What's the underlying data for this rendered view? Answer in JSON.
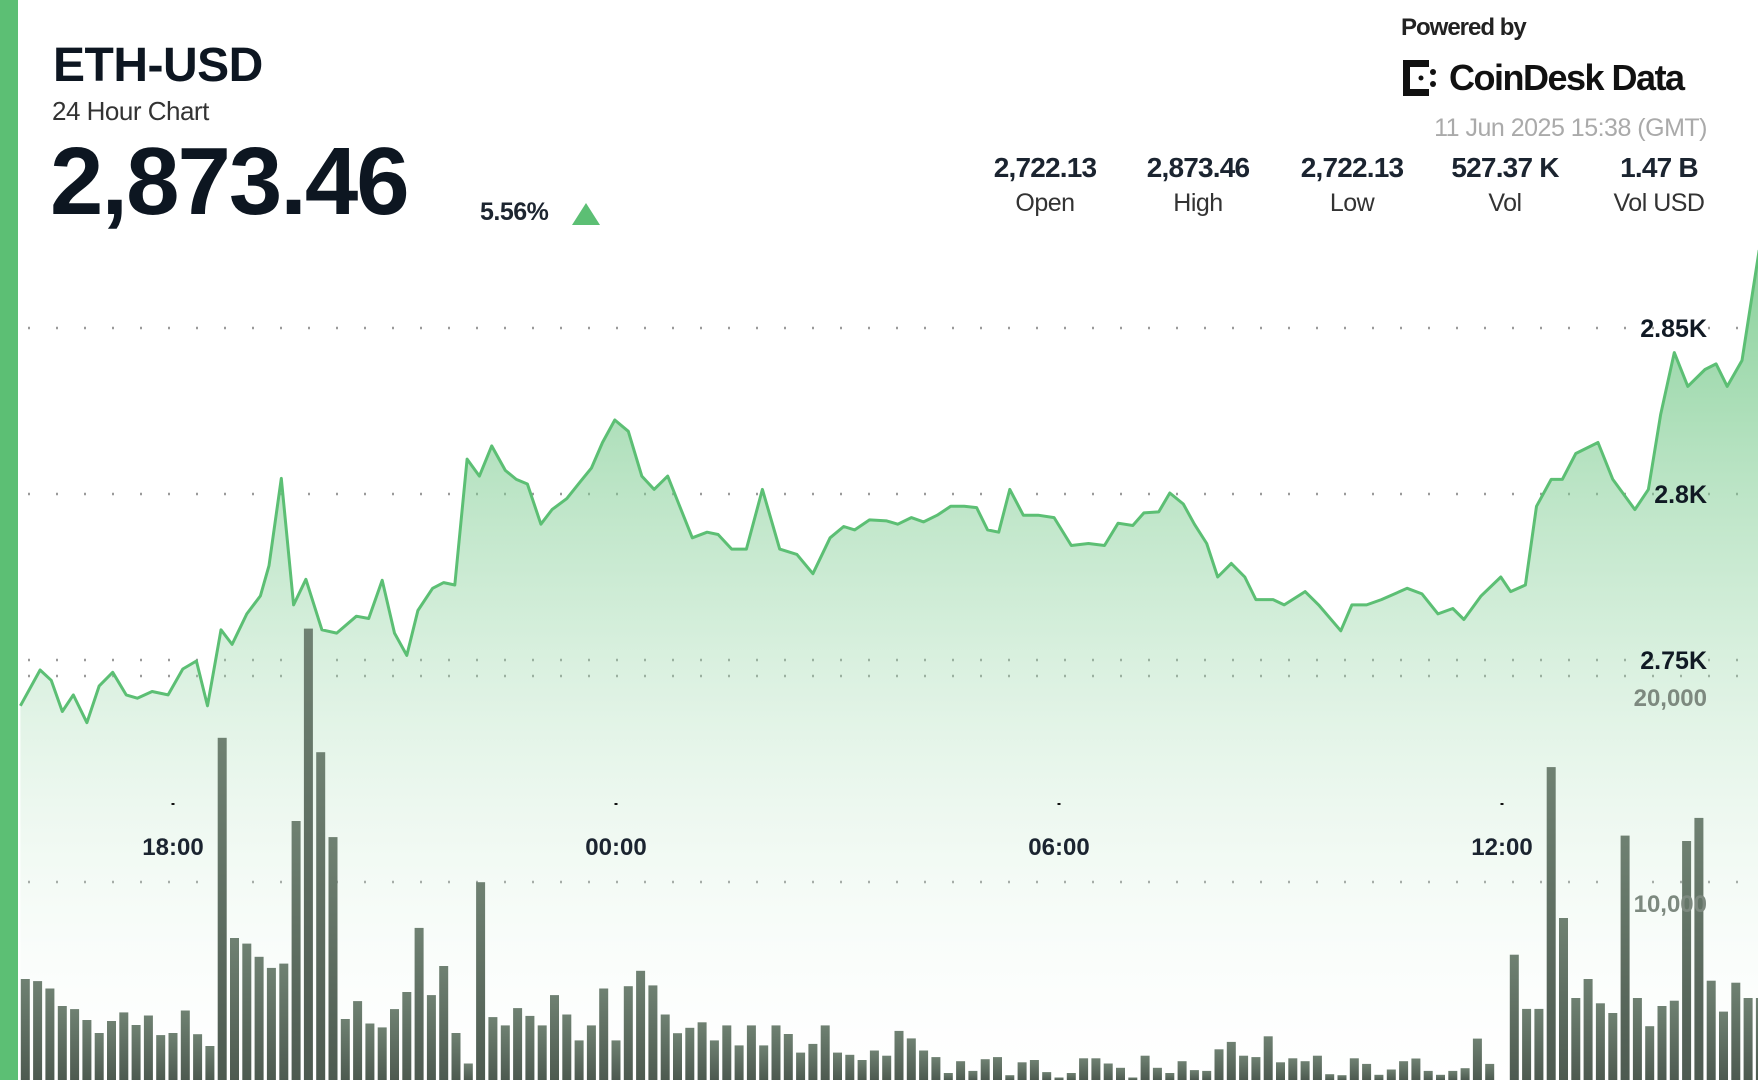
{
  "header": {
    "pair": "ETH-USD",
    "subtitle": "24 Hour Chart",
    "price": "2,873.46",
    "change_pct": "5.56%",
    "change_direction": "up",
    "powered_by": "Powered by",
    "brand": "CoinDesk Data",
    "timestamp": "11 Jun 2025 15:38 (GMT)"
  },
  "stats": [
    {
      "value": "2,722.13",
      "label": "Open"
    },
    {
      "value": "2,873.46",
      "label": "High"
    },
    {
      "value": "2,722.13",
      "label": "Low"
    },
    {
      "value": "527.37 K",
      "label": "Vol"
    },
    {
      "value": "1.47 B",
      "label": "Vol USD"
    }
  ],
  "colors": {
    "accent": "#5cbf74",
    "line": "#5cbf74",
    "volume_bar": "#5b6a5e",
    "up": "#5cbf74"
  },
  "chart_data": {
    "type": "area",
    "grid": "dotted horizontal",
    "price_axis": {
      "ticks": [
        2750,
        2800,
        2850
      ],
      "tick_labels": [
        "2.75K",
        "2.8K",
        "2.85K"
      ],
      "position": "right"
    },
    "volume_axis": {
      "ticks": [
        10000,
        20000
      ],
      "tick_labels": [
        "10,000",
        "20,000"
      ],
      "position": "right"
    },
    "x_ticks": [
      "18:00",
      "00:00",
      "06:00",
      "12:00"
    ],
    "price_series": [
      [
        "15:56",
        2736.2
      ],
      [
        "16:12",
        2747.0
      ],
      [
        "16:21",
        2743.9
      ],
      [
        "16:30",
        2734.5
      ],
      [
        "16:39",
        2739.5
      ],
      [
        "16:50",
        2731.1
      ],
      [
        "17:00",
        2742.2
      ],
      [
        "17:11",
        2746.3
      ],
      [
        "17:22",
        2739.5
      ],
      [
        "17:31",
        2738.5
      ],
      [
        "17:43",
        2740.5
      ],
      [
        "17:56",
        2739.5
      ],
      [
        "18:08",
        2747.3
      ],
      [
        "18:19",
        2749.7
      ],
      [
        "18:28",
        2736.2
      ],
      [
        "18:39",
        2759.1
      ],
      [
        "18:48",
        2754.7
      ],
      [
        "19:00",
        2763.9
      ],
      [
        "19:11",
        2769.3
      ],
      [
        "19:18",
        2778.4
      ],
      [
        "19:28",
        2804.7
      ],
      [
        "19:38",
        2766.6
      ],
      [
        "19:48",
        2774.3
      ],
      [
        "20:01",
        2759.1
      ],
      [
        "20:13",
        2758.1
      ],
      [
        "20:29",
        2763.2
      ],
      [
        "20:39",
        2762.5
      ],
      [
        "20:50",
        2774.0
      ],
      [
        "21:00",
        2758.1
      ],
      [
        "21:10",
        2751.4
      ],
      [
        "21:19",
        2764.9
      ],
      [
        "21:31",
        2771.6
      ],
      [
        "21:40",
        2773.3
      ],
      [
        "21:49",
        2772.6
      ],
      [
        "21:59",
        2810.5
      ],
      [
        "22:09",
        2805.4
      ],
      [
        "22:19",
        2814.5
      ],
      [
        "22:30",
        2807.1
      ],
      [
        "22:39",
        2804.4
      ],
      [
        "22:48",
        2803.0
      ],
      [
        "22:59",
        2790.9
      ],
      [
        "23:08",
        2795.3
      ],
      [
        "23:20",
        2798.6
      ],
      [
        "23:31",
        2803.7
      ],
      [
        "23:40",
        2807.8
      ],
      [
        "23:49",
        2815.5
      ],
      [
        "23:59",
        2822.3
      ],
      [
        "00:10",
        2818.9
      ],
      [
        "00:21",
        2805.4
      ],
      [
        "00:31",
        2801.4
      ],
      [
        "00:42",
        2805.4
      ],
      [
        "00:51",
        2797.0
      ],
      [
        "01:02",
        2786.8
      ],
      [
        "01:14",
        2788.5
      ],
      [
        "01:23",
        2787.8
      ],
      [
        "01:34",
        2783.4
      ],
      [
        "01:46",
        2783.4
      ],
      [
        "01:59",
        2801.4
      ],
      [
        "02:13",
        2783.4
      ],
      [
        "02:27",
        2781.8
      ],
      [
        "02:40",
        2776.0
      ],
      [
        "02:54",
        2786.8
      ],
      [
        "03:05",
        2790.2
      ],
      [
        "03:14",
        2789.2
      ],
      [
        "03:26",
        2792.2
      ],
      [
        "03:40",
        2791.9
      ],
      [
        "03:49",
        2790.9
      ],
      [
        "04:00",
        2792.9
      ],
      [
        "04:10",
        2791.6
      ],
      [
        "04:21",
        2793.6
      ],
      [
        "04:32",
        2796.3
      ],
      [
        "04:43",
        2796.3
      ],
      [
        "04:53",
        2795.9
      ],
      [
        "05:02",
        2789.2
      ],
      [
        "05:11",
        2788.5
      ],
      [
        "05:20",
        2801.4
      ],
      [
        "05:31",
        2793.6
      ],
      [
        "05:43",
        2793.6
      ],
      [
        "05:56",
        2792.9
      ],
      [
        "06:10",
        2784.5
      ],
      [
        "06:24",
        2785.1
      ],
      [
        "06:37",
        2784.5
      ],
      [
        "06:48",
        2791.2
      ],
      [
        "07:00",
        2790.5
      ],
      [
        "07:09",
        2794.3
      ],
      [
        "07:21",
        2794.6
      ],
      [
        "07:30",
        2800.3
      ],
      [
        "07:41",
        2797.0
      ],
      [
        "07:50",
        2790.9
      ],
      [
        "08:00",
        2785.1
      ],
      [
        "08:09",
        2775.0
      ],
      [
        "08:20",
        2779.1
      ],
      [
        "08:31",
        2775.0
      ],
      [
        "08:40",
        2768.2
      ],
      [
        "08:54",
        2768.2
      ],
      [
        "09:03",
        2766.6
      ],
      [
        "09:20",
        2770.6
      ],
      [
        "09:31",
        2766.6
      ],
      [
        "09:49",
        2758.8
      ],
      [
        "09:58",
        2766.6
      ],
      [
        "10:10",
        2766.6
      ],
      [
        "10:22",
        2768.2
      ],
      [
        "10:43",
        2771.6
      ],
      [
        "10:55",
        2769.9
      ],
      [
        "11:08",
        2763.9
      ],
      [
        "11:20",
        2765.5
      ],
      [
        "11:29",
        2762.2
      ],
      [
        "11:43",
        2769.3
      ],
      [
        "11:59",
        2775.0
      ],
      [
        "12:07",
        2770.6
      ],
      [
        "12:19",
        2772.6
      ],
      [
        "12:28",
        2796.3
      ],
      [
        "12:40",
        2804.4
      ],
      [
        "12:49",
        2804.4
      ],
      [
        "13:00",
        2812.2
      ],
      [
        "13:18",
        2815.5
      ],
      [
        "13:30",
        2804.4
      ],
      [
        "13:48",
        2795.3
      ],
      [
        "13:59",
        2801.4
      ],
      [
        "14:09",
        2824.0
      ],
      [
        "14:20",
        2842.6
      ],
      [
        "14:31",
        2832.4
      ],
      [
        "14:45",
        2837.5
      ],
      [
        "14:54",
        2839.2
      ],
      [
        "15:03",
        2832.4
      ],
      [
        "15:15",
        2840.2
      ],
      [
        "15:29",
        2873.46
      ]
    ],
    "volume_by_hour": [
      {
        "hour": "16",
        "values": [
          5290,
          5190,
          4830,
          3980,
          3830,
          3300
        ]
      },
      {
        "hour": "17",
        "values": [
          2670,
          3250,
          3670,
          3060,
          3520,
          2570
        ]
      },
      {
        "hour": "18",
        "values": [
          2670,
          3760,
          2610,
          2040,
          17000,
          7280
        ]
      },
      {
        "hour": "19",
        "values": [
          7010,
          6370,
          5830,
          6040,
          12960,
          22300
        ]
      },
      {
        "hour": "20",
        "values": [
          16300,
          12180,
          3350,
          4220,
          3130,
          2940
        ]
      },
      {
        "hour": "21",
        "values": [
          3830,
          4660,
          7770,
          4510,
          5920,
          2670
        ]
      },
      {
        "hour": "22",
        "values": [
          1190,
          9990,
          3440,
          3040,
          3880,
          3500
        ]
      },
      {
        "hour": "23",
        "values": [
          3040,
          4510,
          3570,
          2310,
          3040,
          4830
        ]
      },
      {
        "hour": "00",
        "values": [
          2310,
          4940,
          5690,
          4980,
          3570,
          2660
        ]
      },
      {
        "hour": "01",
        "values": [
          2920,
          3190,
          2310,
          3040,
          2070,
          3040
        ]
      },
      {
        "hour": "02",
        "values": [
          2070,
          3040,
          2620,
          1720,
          2140,
          3040
        ]
      },
      {
        "hour": "03",
        "values": [
          1720,
          1610,
          1360,
          1820,
          1570,
          2770
        ]
      },
      {
        "hour": "04",
        "values": [
          2410,
          1820,
          1500,
          730,
          1300,
          830
        ]
      },
      {
        "hour": "05",
        "values": [
          1400,
          1500,
          620,
          1250,
          1360,
          770
        ]
      },
      {
        "hour": "06",
        "values": [
          510,
          730,
          1440,
          1440,
          1190,
          980
        ]
      },
      {
        "hour": "07",
        "values": [
          510,
          1570,
          980,
          730,
          1300,
          870
        ]
      },
      {
        "hour": "08",
        "values": [
          830,
          1880,
          2240,
          1570,
          1500,
          2510
        ]
      },
      {
        "hour": "09",
        "values": [
          1250,
          1440,
          1300,
          1570,
          670,
          620
        ]
      },
      {
        "hour": "10",
        "values": [
          1440,
          1170,
          640,
          900,
          1300,
          1430
        ]
      },
      {
        "hour": "11",
        "values": [
          830,
          640,
          830,
          960,
          2400,
          1170
        ]
      },
      {
        "hour": "12",
        "values": [
          300,
          6470,
          3840,
          3840,
          15580,
          8250
        ]
      },
      {
        "hour": "13",
        "values": [
          4370,
          5290,
          4110,
          3640,
          12250,
          4370
        ]
      },
      {
        "hour": "14",
        "values": [
          3000,
          3980,
          4240,
          11990,
          13110,
          5210
        ]
      },
      {
        "hour": "15",
        "values": [
          3710,
          5110,
          4370,
          4370,
          9700
        ]
      }
    ]
  }
}
